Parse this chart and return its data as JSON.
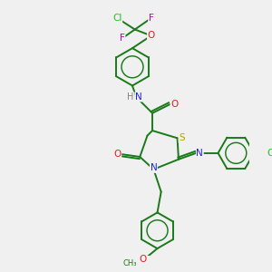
{
  "background_color": "#f0f0f0",
  "atom_colors": {
    "C": "#1a7a1a",
    "H": "#808080",
    "N": "#2020e0",
    "O": "#e02020",
    "S": "#b8a000",
    "F": "#c000c0",
    "Cl": "#20c020"
  },
  "bond_color": "#1a7a1a",
  "bond_lw": 1.4,
  "font_size": 7.5
}
